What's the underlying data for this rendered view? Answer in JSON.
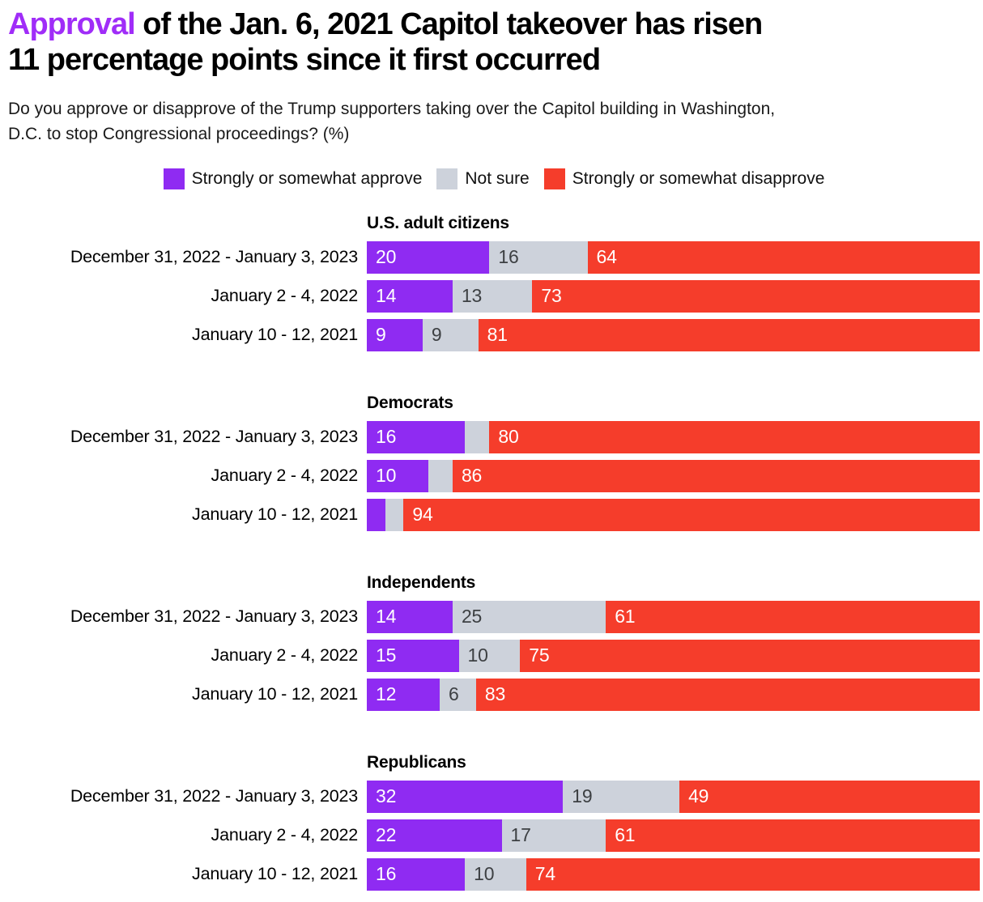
{
  "title": {
    "highlight": "Approval",
    "rest_line1": " of the Jan. 6, 2021 Capitol takeover has risen",
    "line2": "11 percentage points since it first occurred"
  },
  "subtitle_lines": [
    "Do you approve or disapprove of the Trump supporters taking over the Capitol building in Washington,",
    "D.C. to stop Congressional proceedings? (%)"
  ],
  "legend": [
    {
      "label": "Strongly or somewhat approve",
      "color": "#8F2BF2"
    },
    {
      "label": "Not sure",
      "color": "#CDD2DB"
    },
    {
      "label": "Strongly or somewhat disapprove",
      "color": "#F53D2B"
    }
  ],
  "colors": {
    "approve": "#8F2BF2",
    "not_sure": "#CDD2DB",
    "disapprove": "#F53D2B",
    "title_highlight": "#A02DF8",
    "label_on_dark": "#FFFFFF",
    "label_on_light": "#3D4043"
  },
  "chart_data": {
    "type": "bar",
    "stacked": true,
    "orientation": "horizontal",
    "x_range": [
      0,
      100
    ],
    "unit": "%",
    "grid": false,
    "legend_position": "top-center",
    "series_names": [
      "Strongly or somewhat approve",
      "Not sure",
      "Strongly or somewhat disapprove"
    ],
    "groups": [
      {
        "header": "U.S. adult citizens",
        "rows": [
          {
            "label": "December 31, 2022 - January 3, 2023",
            "values": [
              20,
              16,
              64
            ],
            "shown_labels": [
              "20",
              "16",
              "64"
            ]
          },
          {
            "label": "January 2 - 4, 2022",
            "values": [
              14,
              13,
              73
            ],
            "shown_labels": [
              "14",
              "13",
              "73"
            ]
          },
          {
            "label": "January 10 - 12, 2021",
            "values": [
              9,
              9,
              81
            ],
            "shown_labels": [
              "9",
              "9",
              "81"
            ]
          }
        ]
      },
      {
        "header": "Democrats",
        "rows": [
          {
            "label": "December 31, 2022 - January 3, 2023",
            "values": [
              16,
              4,
              80
            ],
            "shown_labels": [
              "16",
              "",
              "80"
            ]
          },
          {
            "label": "January 2 - 4, 2022",
            "values": [
              10,
              4,
              86
            ],
            "shown_labels": [
              "10",
              "",
              "86"
            ]
          },
          {
            "label": "January 10 - 12, 2021",
            "values": [
              3,
              3,
              94
            ],
            "shown_labels": [
              "",
              "",
              "94"
            ]
          }
        ]
      },
      {
        "header": "Independents",
        "rows": [
          {
            "label": "December 31, 2022 - January 3, 2023",
            "values": [
              14,
              25,
              61
            ],
            "shown_labels": [
              "14",
              "25",
              "61"
            ]
          },
          {
            "label": "January 2 - 4, 2022",
            "values": [
              15,
              10,
              75
            ],
            "shown_labels": [
              "15",
              "10",
              "75"
            ]
          },
          {
            "label": "January 10 - 12, 2021",
            "values": [
              12,
              6,
              83
            ],
            "shown_labels": [
              "12",
              "6",
              "83"
            ]
          }
        ]
      },
      {
        "header": "Republicans",
        "rows": [
          {
            "label": "December 31, 2022 - January 3, 2023",
            "values": [
              32,
              19,
              49
            ],
            "shown_labels": [
              "32",
              "19",
              "49"
            ]
          },
          {
            "label": "January 2 - 4, 2022",
            "values": [
              22,
              17,
              61
            ],
            "shown_labels": [
              "22",
              "17",
              "61"
            ]
          },
          {
            "label": "January 10 - 12, 2021",
            "values": [
              16,
              10,
              74
            ],
            "shown_labels": [
              "16",
              "10",
              "74"
            ]
          }
        ]
      }
    ]
  }
}
